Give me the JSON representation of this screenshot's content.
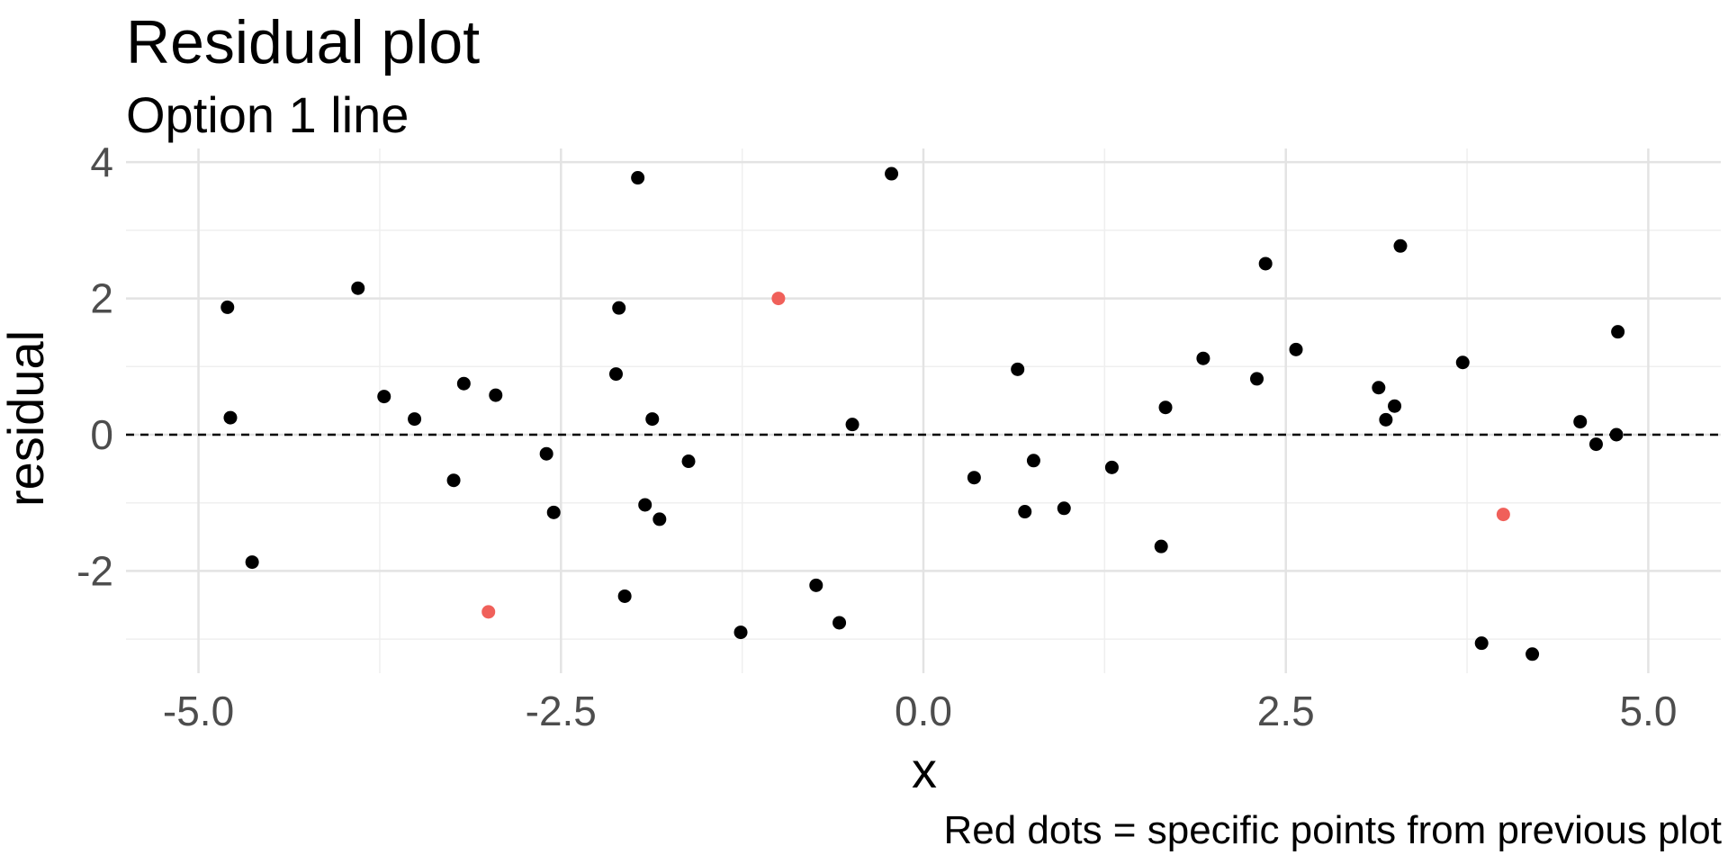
{
  "chart_data": {
    "type": "scatter",
    "title": "Residual plot",
    "subtitle": "Option 1 line",
    "xlabel": "x",
    "ylabel": "residual",
    "caption": "Red dots = specific points from previous plot",
    "xlim": [
      -5.5,
      5.5
    ],
    "ylim": [
      -3.5,
      4.2
    ],
    "x_ticks": [
      -5.0,
      -2.5,
      0.0,
      2.5,
      5.0
    ],
    "x_tick_labels": [
      "-5.0",
      "-2.5",
      "0.0",
      "2.5",
      "5.0"
    ],
    "y_ticks": [
      -2,
      0,
      2,
      4
    ],
    "y_tick_labels": [
      "-2",
      "0",
      "2",
      "4"
    ],
    "grid": true,
    "reference_line": {
      "y": 0,
      "style": "dashed",
      "color": "#000000"
    },
    "colors": {
      "default_point": "#000000",
      "highlight_point": "#f0605a",
      "grid_major": "#e3e3e3",
      "grid_minor": "#efefef"
    },
    "series": [
      {
        "points": [
          {
            "x": -4.8,
            "y": 1.87
          },
          {
            "x": -4.78,
            "y": 0.25
          },
          {
            "x": -4.63,
            "y": -1.87
          },
          {
            "x": -3.9,
            "y": 2.15
          },
          {
            "x": -3.72,
            "y": 0.56
          },
          {
            "x": -3.51,
            "y": 0.23
          },
          {
            "x": -3.24,
            "y": -0.67
          },
          {
            "x": -3.17,
            "y": 0.75
          },
          {
            "x": -2.95,
            "y": 0.58
          },
          {
            "x": -2.6,
            "y": -0.28
          },
          {
            "x": -2.55,
            "y": -1.14
          },
          {
            "x": -2.12,
            "y": 0.89
          },
          {
            "x": -2.1,
            "y": 1.86
          },
          {
            "x": -2.06,
            "y": -2.37
          },
          {
            "x": -1.97,
            "y": 3.77
          },
          {
            "x": -1.92,
            "y": -1.03
          },
          {
            "x": -1.87,
            "y": 0.23
          },
          {
            "x": -1.82,
            "y": -1.24
          },
          {
            "x": -1.62,
            "y": -0.39
          },
          {
            "x": -1.26,
            "y": -2.9
          },
          {
            "x": -0.74,
            "y": -2.21
          },
          {
            "x": -0.58,
            "y": -2.76
          },
          {
            "x": -0.49,
            "y": 0.15
          },
          {
            "x": -0.22,
            "y": 3.83
          },
          {
            "x": 0.35,
            "y": -0.63
          },
          {
            "x": 0.65,
            "y": 0.96
          },
          {
            "x": 0.7,
            "y": -1.13
          },
          {
            "x": 0.76,
            "y": -0.38
          },
          {
            "x": 0.97,
            "y": -1.08
          },
          {
            "x": 1.3,
            "y": -0.48
          },
          {
            "x": 1.64,
            "y": -1.64
          },
          {
            "x": 1.67,
            "y": 0.4
          },
          {
            "x": 1.93,
            "y": 1.12
          },
          {
            "x": 2.3,
            "y": 0.82
          },
          {
            "x": 2.36,
            "y": 2.51
          },
          {
            "x": 2.57,
            "y": 1.25
          },
          {
            "x": 3.14,
            "y": 0.69
          },
          {
            "x": 3.19,
            "y": 0.22
          },
          {
            "x": 3.25,
            "y": 0.42
          },
          {
            "x": 3.29,
            "y": 2.77
          },
          {
            "x": 3.72,
            "y": 1.06
          },
          {
            "x": 3.85,
            "y": -3.06
          },
          {
            "x": 4.2,
            "y": -3.22
          },
          {
            "x": 4.53,
            "y": 0.19
          },
          {
            "x": 4.64,
            "y": -0.14
          },
          {
            "x": 4.78,
            "y": 0.0
          },
          {
            "x": 4.79,
            "y": 1.51
          }
        ],
        "color": "#000000"
      },
      {
        "points": [
          {
            "x": -3.0,
            "y": -2.6
          },
          {
            "x": -1.0,
            "y": 2.0
          },
          {
            "x": 4.0,
            "y": -1.17
          }
        ],
        "color": "#f0605a"
      }
    ]
  }
}
